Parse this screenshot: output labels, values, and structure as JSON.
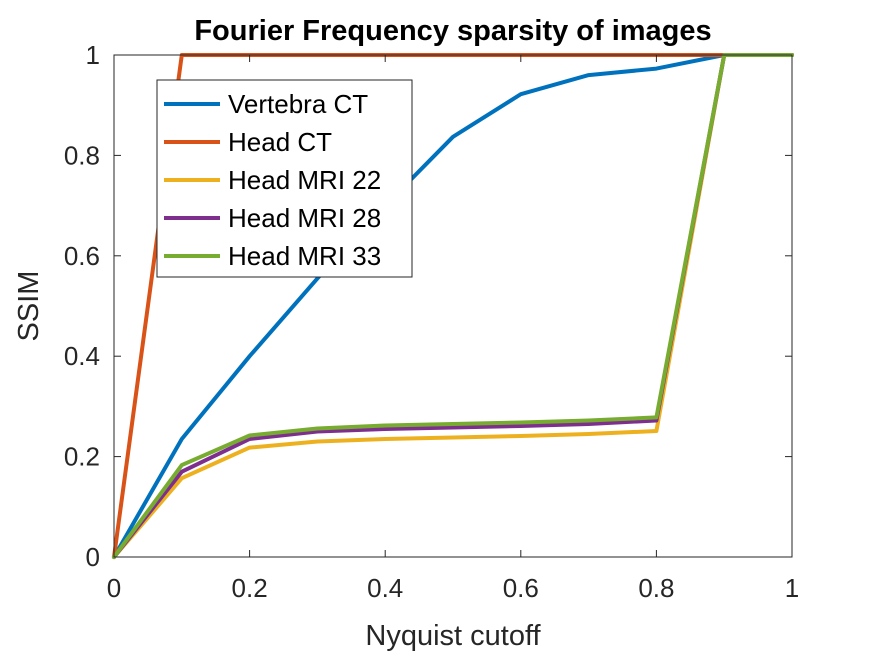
{
  "chart_data": {
    "type": "line",
    "title": "Fourier Frequency sparsity of images",
    "xlabel": "Nyquist cutoff",
    "ylabel": "SSIM",
    "xlim": [
      0,
      1
    ],
    "ylim": [
      0,
      1
    ],
    "xticks": [
      "0",
      "0.2",
      "0.4",
      "0.6",
      "0.8",
      "1"
    ],
    "yticks": [
      "0",
      "0.2",
      "0.4",
      "0.6",
      "0.8",
      "1"
    ],
    "grid": false,
    "legend_position": "top-left",
    "x": [
      0,
      0.1,
      0.2,
      0.3,
      0.4,
      0.5,
      0.6,
      0.7,
      0.8,
      0.9,
      1.0
    ],
    "series": [
      {
        "name": "Vertebra CT",
        "color": "#0072BD",
        "values": [
          0,
          0.235,
          0.4,
          0.555,
          0.7,
          0.837,
          0.922,
          0.96,
          0.973,
          1.0,
          1.0
        ]
      },
      {
        "name": "Head CT",
        "color": "#D95319",
        "values": [
          0,
          1.0,
          1.0,
          1.0,
          1.0,
          1.0,
          1.0,
          1.0,
          1.0,
          1.0,
          1.0
        ]
      },
      {
        "name": "Head MRI 22",
        "color": "#EDB120",
        "values": [
          0,
          0.157,
          0.218,
          0.23,
          0.235,
          0.238,
          0.241,
          0.245,
          0.251,
          1.0,
          1.0
        ]
      },
      {
        "name": "Head MRI 28",
        "color": "#7E2F8E",
        "values": [
          0,
          0.17,
          0.235,
          0.25,
          0.255,
          0.258,
          0.261,
          0.265,
          0.272,
          1.0,
          1.0
        ]
      },
      {
        "name": "Head MRI 33",
        "color": "#77AC30",
        "values": [
          0,
          0.183,
          0.242,
          0.256,
          0.262,
          0.265,
          0.268,
          0.272,
          0.278,
          1.0,
          1.0
        ]
      }
    ]
  }
}
